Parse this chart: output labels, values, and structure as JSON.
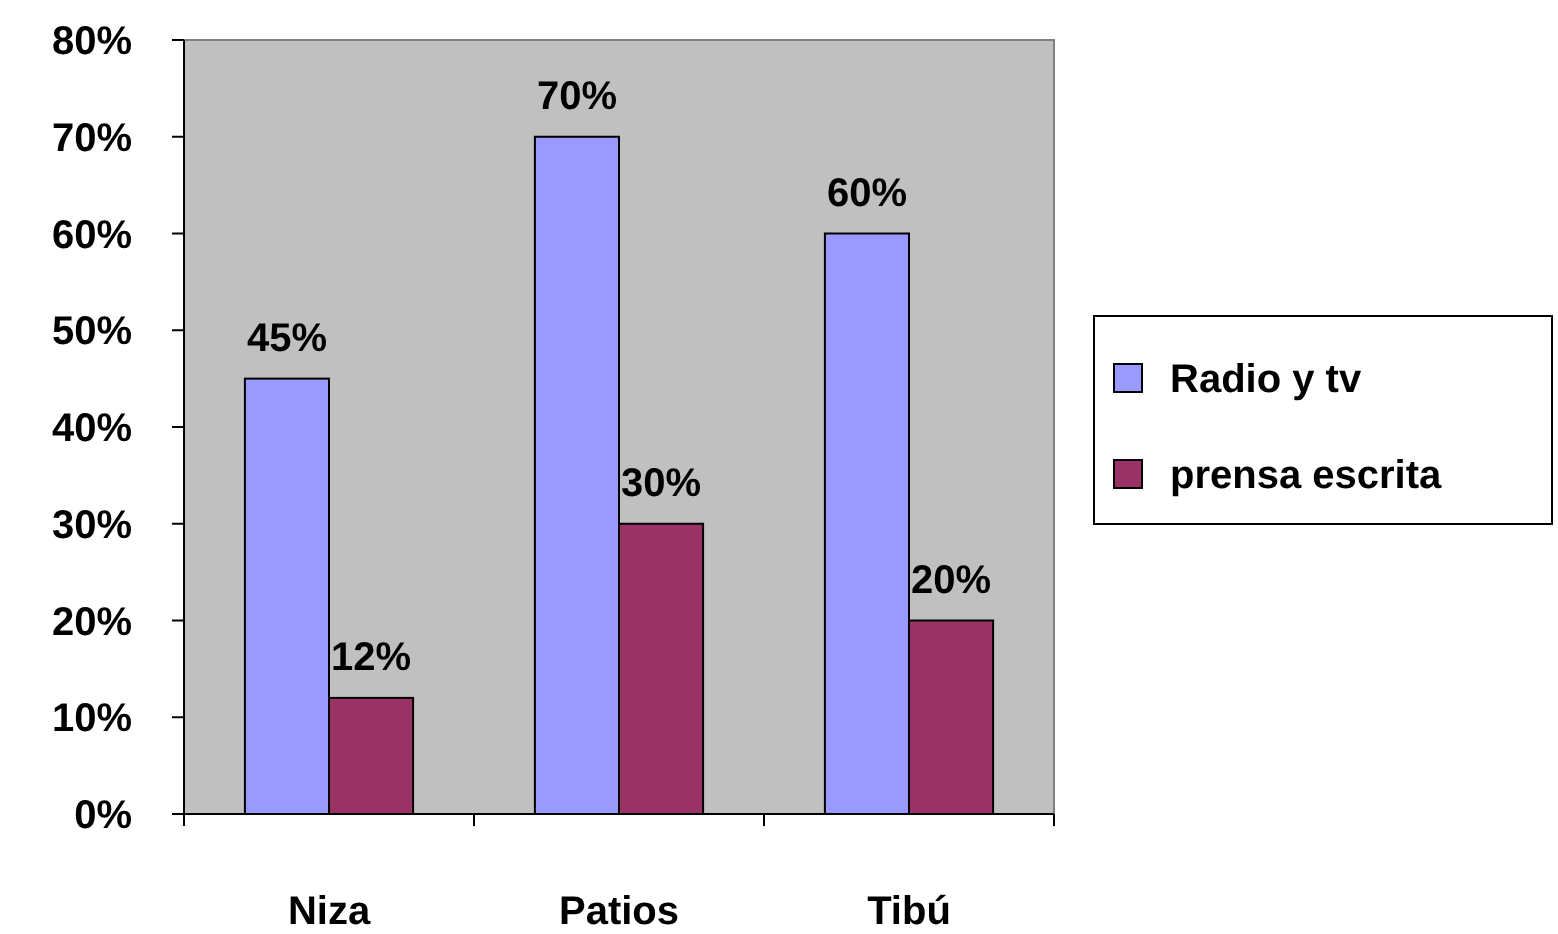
{
  "chart_data": {
    "type": "bar",
    "categories": [
      "Niza",
      "Patios",
      "Tibú"
    ],
    "series": [
      {
        "name": "Radio y tv",
        "color": "#9999ff",
        "values": [
          45,
          70,
          60
        ],
        "value_labels": [
          "45%",
          "70%",
          "60%"
        ]
      },
      {
        "name": "prensa escrita",
        "color": "#993366",
        "values": [
          12,
          30,
          20
        ],
        "value_labels": [
          "12%",
          "30%",
          "20%"
        ]
      }
    ],
    "ylim": [
      0,
      80
    ],
    "yticks": [
      {
        "value": 0,
        "label": "0%"
      },
      {
        "value": 10,
        "label": "10%"
      },
      {
        "value": 20,
        "label": "20%"
      },
      {
        "value": 30,
        "label": "30%"
      },
      {
        "value": 40,
        "label": "40%"
      },
      {
        "value": 50,
        "label": "50%"
      },
      {
        "value": 60,
        "label": "60%"
      },
      {
        "value": 70,
        "label": "70%"
      },
      {
        "value": 80,
        "label": "80%"
      }
    ],
    "grid": false,
    "legend": "right"
  }
}
